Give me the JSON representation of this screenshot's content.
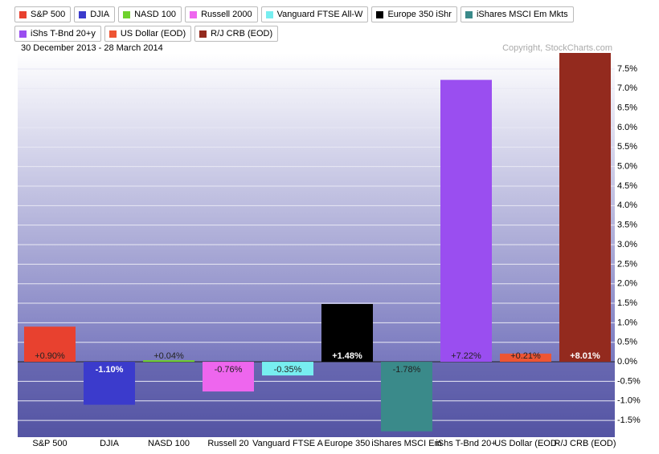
{
  "chart_data": {
    "type": "bar",
    "subtitle": "30 December 2013 - 28 March 2014",
    "copyright": "Copyright, StockCharts.com",
    "legend": [
      "S&P 500",
      "DJIA",
      "NASD 100",
      "Russell 2000",
      "Vanguard FTSE All-W",
      "Europe 350 iShr",
      "iShares MSCI Em Mkts",
      "iShs T-Bnd 20+y",
      "US Dollar (EOD)",
      "R/J CRB (EOD)"
    ],
    "categories": [
      "S&P 500",
      "DJIA",
      "NASD 100",
      "Russell 20",
      "Vanguard FTSE A",
      "Europe 350",
      "iShares MSCI Em",
      "iShs T-Bnd 20+",
      "US Dollar (EOD",
      "R/J CRB (EOD)"
    ],
    "values": [
      0.9,
      -1.1,
      0.04,
      -0.76,
      -0.35,
      1.48,
      -1.78,
      7.22,
      0.21,
      8.01
    ],
    "value_labels": [
      "+0.90%",
      "-1.10%",
      "+0.04%",
      "-0.76%",
      "-0.35%",
      "+1.48%",
      "-1.78%",
      "+7.22%",
      "+0.21%",
      "+8.01%"
    ],
    "colors": [
      "#e8412f",
      "#3b3bcc",
      "#6fd22c",
      "#ee66ee",
      "#77eef0",
      "#000000",
      "#3a8a8a",
      "#9a4ef0",
      "#ee5533",
      "#932a1e"
    ],
    "ylim": [
      -1.93,
      7.91
    ],
    "yticks": [
      {
        "value": -1.5,
        "label": "-1.5%"
      },
      {
        "value": -1.0,
        "label": "-1.0%"
      },
      {
        "value": -0.5,
        "label": "-0.5%"
      },
      {
        "value": 0,
        "label": "0.0%"
      },
      {
        "value": 0.5,
        "label": "0.5%"
      },
      {
        "value": 1.0,
        "label": "1.0%"
      },
      {
        "value": 1.5,
        "label": "1.5%"
      },
      {
        "value": 2.0,
        "label": "2.0%"
      },
      {
        "value": 2.5,
        "label": "2.5%"
      },
      {
        "value": 3.0,
        "label": "3.0%"
      },
      {
        "value": 3.5,
        "label": "3.5%"
      },
      {
        "value": 4.0,
        "label": "4.0%"
      },
      {
        "value": 4.5,
        "label": "4.5%"
      },
      {
        "value": 5.0,
        "label": "5.0%"
      },
      {
        "value": 5.5,
        "label": "5.5%"
      },
      {
        "value": 6.0,
        "label": "6.0%"
      },
      {
        "value": 6.5,
        "label": "6.5%"
      },
      {
        "value": 7.0,
        "label": "7.0%"
      },
      {
        "value": 7.5,
        "label": "7.5%"
      }
    ],
    "grid": true
  }
}
